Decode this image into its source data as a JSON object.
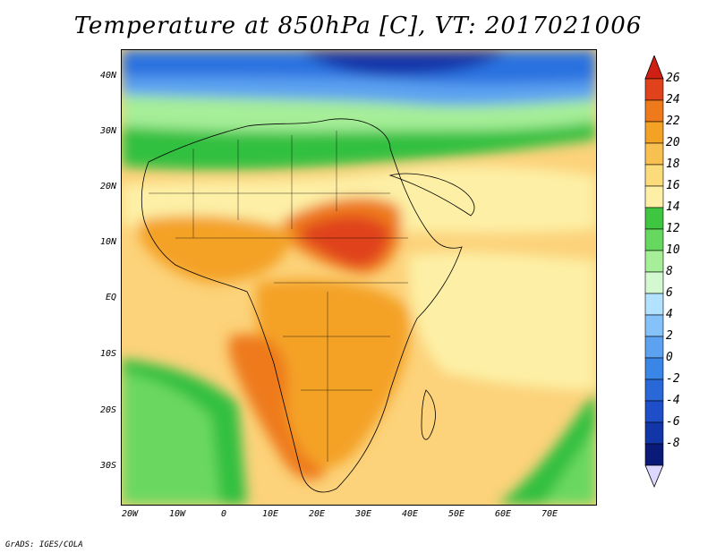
{
  "title": "Temperature at 850hPa [C], VT: 2017021006",
  "credit": "GrADS: IGES/COLA",
  "map": {
    "lat_ticks": [
      "40N",
      "30N",
      "20N",
      "10N",
      "EQ",
      "10S",
      "20S",
      "30S"
    ],
    "lon_ticks": [
      "20W",
      "10W",
      "0",
      "10E",
      "20E",
      "30E",
      "40E",
      "50E",
      "60E",
      "70E"
    ],
    "colors": {
      "land_warm": "#f5a623",
      "sea_warm": "#fde08a",
      "hot": "#e8501c",
      "cool_green": "#33c040",
      "cold_blue": "#2a72e0"
    }
  },
  "colorbar": {
    "labels": [
      "26",
      "24",
      "22",
      "20",
      "18",
      "16",
      "14",
      "12",
      "10",
      "8",
      "6",
      "4",
      "2",
      "0",
      "-2",
      "-4",
      "-6",
      "-8"
    ],
    "colors": [
      "#e0421c",
      "#ee7a1c",
      "#f4a226",
      "#f8c050",
      "#fcdc7a",
      "#fdf0a6",
      "#3ec640",
      "#66d860",
      "#a6ee98",
      "#d4f8d0",
      "#b2e2ff",
      "#86c2fa",
      "#5ca2f0",
      "#3a86e6",
      "#2a68d8",
      "#1e4ec8",
      "#1236a8",
      "#0a1a78"
    ],
    "top_arrow_color": "#d02014",
    "bottom_arrow_color": "#ddd8ff"
  }
}
